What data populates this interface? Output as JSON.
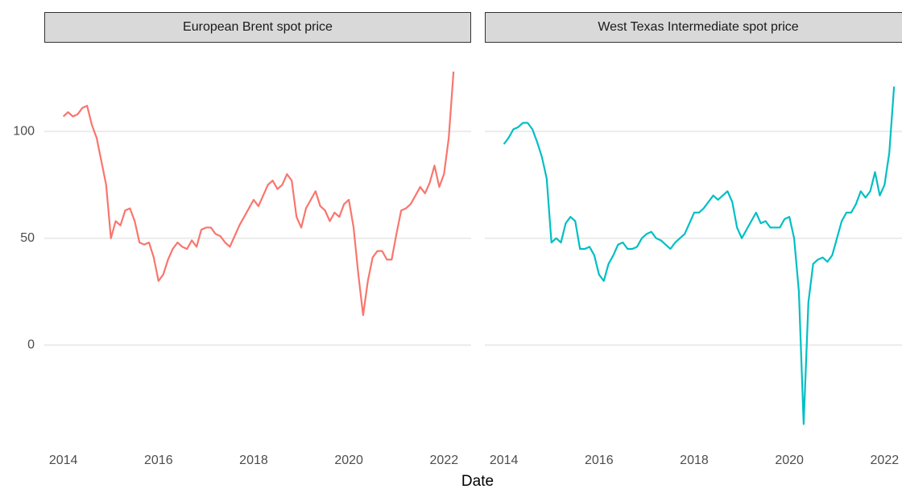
{
  "chart_data": {
    "type": "line",
    "x_label": "Date",
    "xlim": [
      2013.6,
      2022.57
    ],
    "xticks": [
      2014,
      2016,
      2018,
      2020,
      2022
    ],
    "ylim": [
      -44,
      137
    ],
    "yticks": [
      0,
      50,
      100
    ],
    "grid": true,
    "x": [
      2014.0,
      2014.1,
      2014.2,
      2014.3,
      2014.4,
      2014.5,
      2014.6,
      2014.7,
      2014.8,
      2014.9,
      2015.0,
      2015.1,
      2015.2,
      2015.3,
      2015.4,
      2015.5,
      2015.6,
      2015.7,
      2015.8,
      2015.9,
      2016.0,
      2016.1,
      2016.2,
      2016.3,
      2016.4,
      2016.5,
      2016.6,
      2016.7,
      2016.8,
      2016.9,
      2017.0,
      2017.1,
      2017.2,
      2017.3,
      2017.4,
      2017.5,
      2017.6,
      2017.7,
      2017.8,
      2017.9,
      2018.0,
      2018.1,
      2018.2,
      2018.3,
      2018.4,
      2018.5,
      2018.6,
      2018.7,
      2018.8,
      2018.9,
      2019.0,
      2019.1,
      2019.2,
      2019.3,
      2019.4,
      2019.5,
      2019.6,
      2019.7,
      2019.8,
      2019.9,
      2020.0,
      2020.1,
      2020.2,
      2020.3,
      2020.4,
      2020.5,
      2020.6,
      2020.7,
      2020.8,
      2020.9,
      2021.0,
      2021.1,
      2021.2,
      2021.3,
      2021.4,
      2021.5,
      2021.6,
      2021.7,
      2021.8,
      2021.9,
      2022.0,
      2022.1,
      2022.2
    ],
    "series": [
      {
        "name": "European Brent spot price",
        "color": "#f8766d",
        "values": [
          107,
          109,
          107,
          108,
          111,
          112,
          103,
          97,
          86,
          75,
          50,
          58,
          56,
          63,
          64,
          58,
          48,
          47,
          48,
          41,
          30,
          33,
          40,
          45,
          48,
          46,
          45,
          49,
          46,
          54,
          55,
          55,
          52,
          51,
          48,
          46,
          51,
          56,
          60,
          64,
          68,
          65,
          70,
          75,
          77,
          73,
          75,
          80,
          77,
          60,
          55,
          64,
          68,
          72,
          65,
          63,
          58,
          62,
          60,
          66,
          68,
          55,
          33,
          14,
          30,
          41,
          44,
          44,
          40,
          40,
          52,
          63,
          64,
          66,
          70,
          74,
          71,
          76,
          84,
          74,
          80,
          97,
          128
        ]
      },
      {
        "name": "West Texas Intermediate spot price",
        "color": "#00bfc4",
        "values": [
          94,
          97,
          101,
          102,
          104,
          104,
          101,
          95,
          88,
          78,
          48,
          50,
          48,
          57,
          60,
          58,
          45,
          45,
          46,
          42,
          33,
          30,
          38,
          42,
          47,
          48,
          45,
          45,
          46,
          50,
          52,
          53,
          50,
          49,
          47,
          45,
          48,
          50,
          52,
          57,
          62,
          62,
          64,
          67,
          70,
          68,
          70,
          72,
          67,
          55,
          50,
          54,
          58,
          62,
          57,
          58,
          55,
          55,
          55,
          59,
          60,
          50,
          25,
          -37,
          20,
          38,
          40,
          41,
          39,
          42,
          50,
          58,
          62,
          62,
          66,
          72,
          69,
          72,
          81,
          70,
          75,
          90,
          121
        ]
      }
    ]
  }
}
